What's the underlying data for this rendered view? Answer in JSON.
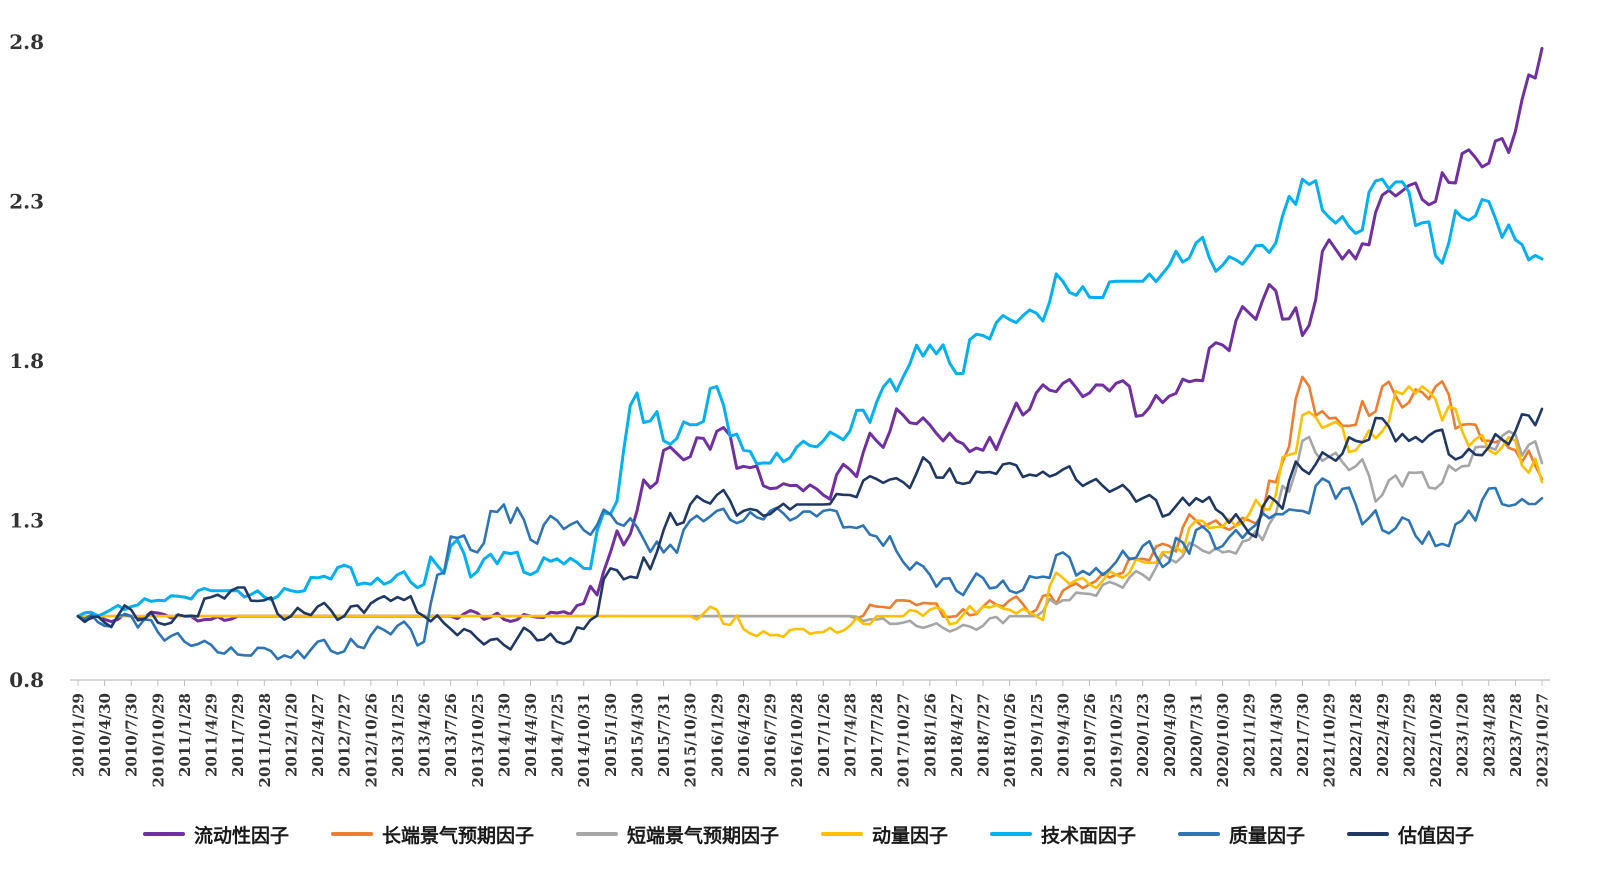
{
  "chart_data": {
    "type": "line",
    "title": "",
    "legend_position": "bottom",
    "grid": false,
    "axis_color": "#BFBFBF",
    "label_color": "#333333",
    "ylim": [
      0.8,
      2.8
    ],
    "y_ticks": [
      0.8,
      1.3,
      1.8,
      2.3,
      2.8
    ],
    "x_labels": [
      "2010/1/29",
      "2010/4/30",
      "2010/7/30",
      "2010/10/29",
      "2011/1/28",
      "2011/4/29",
      "2011/7/29",
      "2011/10/28",
      "2012/1/20",
      "2012/4/27",
      "2012/7/27",
      "2012/10/26",
      "2013/1/25",
      "2013/4/26",
      "2013/7/26",
      "2013/10/25",
      "2014/1/30",
      "2014/4/30",
      "2014/7/25",
      "2014/10/31",
      "2015/1/30",
      "2015/4/30",
      "2015/7/31",
      "2015/10/30",
      "2016/1/29",
      "2016/4/29",
      "2016/7/29",
      "2016/10/28",
      "2017/1/26",
      "2017/4/28",
      "2017/7/28",
      "2017/10/27",
      "2018/1/26",
      "2018/4/27",
      "2018/7/27",
      "2018/10/26",
      "2019/1/25",
      "2019/4/30",
      "2019/7/26",
      "2019/10/25",
      "2020/1/23",
      "2020/4/30",
      "2020/7/31",
      "2020/10/30",
      "2021/1/29",
      "2021/4/30",
      "2021/7/30",
      "2021/10/29",
      "2022/1/28",
      "2022/4/29",
      "2022/7/29",
      "2022/10/28",
      "2023/1/20",
      "2023/4/28",
      "2023/7/28",
      "2023/10/27"
    ],
    "series": [
      {
        "name": "流动性因子",
        "color": "#7030A0",
        "values": [
          1.0,
          0.99,
          1.0,
          1.01,
          1.0,
          0.99,
          1.0,
          1.0,
          1.0,
          1.0,
          1.0,
          1.0,
          1.0,
          1.0,
          1.0,
          1.01,
          0.99,
          1.0,
          1.01,
          1.04,
          1.2,
          1.33,
          1.52,
          1.5,
          1.58,
          1.47,
          1.4,
          1.41,
          1.38,
          1.46,
          1.55,
          1.63,
          1.6,
          1.55,
          1.52,
          1.62,
          1.7,
          1.73,
          1.7,
          1.73,
          1.63,
          1.69,
          1.74,
          1.85,
          1.95,
          2.02,
          1.88,
          2.18,
          2.12,
          2.32,
          2.35,
          2.3,
          2.45,
          2.42,
          2.52,
          2.78
        ]
      },
      {
        "name": "长端景气预期因子",
        "color": "#ED7D31",
        "values": [
          1.0,
          1.0,
          1.0,
          1.0,
          1.0,
          1.0,
          1.0,
          1.0,
          1.0,
          1.0,
          1.0,
          1.0,
          1.0,
          1.0,
          1.0,
          1.0,
          1.0,
          1.0,
          1.0,
          1.0,
          1.0,
          1.0,
          1.0,
          1.0,
          1.0,
          1.0,
          1.0,
          1.0,
          1.0,
          1.0,
          1.03,
          1.05,
          1.04,
          1.0,
          1.03,
          1.05,
          1.02,
          1.08,
          1.1,
          1.13,
          1.18,
          1.22,
          1.3,
          1.28,
          1.3,
          1.42,
          1.75,
          1.62,
          1.6,
          1.72,
          1.67,
          1.72,
          1.6,
          1.55,
          1.52,
          1.43
        ]
      },
      {
        "name": "短端景气预期因子",
        "color": "#A6A6A6",
        "values": [
          1.0,
          1.0,
          1.0,
          1.0,
          1.0,
          1.0,
          1.0,
          1.0,
          1.0,
          1.0,
          1.0,
          1.0,
          1.0,
          1.0,
          1.0,
          1.0,
          1.0,
          1.0,
          1.0,
          1.0,
          1.0,
          1.0,
          1.0,
          1.0,
          1.0,
          1.0,
          1.0,
          1.0,
          1.0,
          1.0,
          0.99,
          0.98,
          0.97,
          0.96,
          0.97,
          1.0,
          1.0,
          1.05,
          1.07,
          1.1,
          1.13,
          1.18,
          1.22,
          1.2,
          1.24,
          1.32,
          1.55,
          1.5,
          1.47,
          1.38,
          1.45,
          1.4,
          1.47,
          1.53,
          1.57,
          1.48
        ]
      },
      {
        "name": "动量因子",
        "color": "#FFC000",
        "values": [
          1.0,
          1.0,
          1.0,
          1.0,
          1.0,
          1.0,
          1.0,
          1.0,
          1.0,
          1.0,
          1.0,
          1.0,
          1.0,
          1.0,
          1.0,
          1.0,
          1.0,
          1.0,
          1.0,
          1.0,
          1.0,
          1.0,
          1.0,
          1.0,
          1.02,
          0.96,
          0.94,
          0.96,
          0.95,
          0.97,
          1.0,
          1.0,
          1.02,
          0.98,
          1.03,
          1.02,
          1.0,
          1.12,
          1.1,
          1.13,
          1.17,
          1.2,
          1.3,
          1.28,
          1.32,
          1.38,
          1.63,
          1.6,
          1.52,
          1.58,
          1.72,
          1.68,
          1.58,
          1.52,
          1.55,
          1.42
        ]
      },
      {
        "name": "技术面因子",
        "color": "#00B0F0",
        "values": [
          1.0,
          1.01,
          1.03,
          1.05,
          1.06,
          1.08,
          1.08,
          1.06,
          1.08,
          1.12,
          1.16,
          1.1,
          1.13,
          1.1,
          1.22,
          1.14,
          1.2,
          1.13,
          1.18,
          1.15,
          1.32,
          1.7,
          1.55,
          1.6,
          1.72,
          1.52,
          1.48,
          1.53,
          1.55,
          1.58,
          1.67,
          1.75,
          1.85,
          1.76,
          1.88,
          1.93,
          1.95,
          2.05,
          2.0,
          2.05,
          2.05,
          2.1,
          2.17,
          2.1,
          2.13,
          2.17,
          2.37,
          2.25,
          2.2,
          2.37,
          2.33,
          2.13,
          2.25,
          2.3,
          2.18,
          2.12
        ]
      },
      {
        "name": "质量因子",
        "color": "#2E75B6",
        "values": [
          1.0,
          0.97,
          1.0,
          0.95,
          0.92,
          0.91,
          0.88,
          0.9,
          0.87,
          0.92,
          0.89,
          0.94,
          0.97,
          0.92,
          1.25,
          1.2,
          1.35,
          1.24,
          1.3,
          1.27,
          1.32,
          1.28,
          1.2,
          1.3,
          1.33,
          1.3,
          1.33,
          1.31,
          1.33,
          1.28,
          1.25,
          1.17,
          1.13,
          1.08,
          1.12,
          1.08,
          1.12,
          1.2,
          1.13,
          1.17,
          1.22,
          1.17,
          1.27,
          1.22,
          1.27,
          1.32,
          1.33,
          1.42,
          1.35,
          1.27,
          1.3,
          1.22,
          1.3,
          1.4,
          1.35,
          1.37
        ]
      },
      {
        "name": "估值因子",
        "color": "#203864",
        "values": [
          1.0,
          0.98,
          1.02,
          0.98,
          1.0,
          1.06,
          1.09,
          1.05,
          1.0,
          1.03,
          1.0,
          1.04,
          1.06,
          1.0,
          0.96,
          0.93,
          0.91,
          0.95,
          0.92,
          0.96,
          1.15,
          1.12,
          1.27,
          1.35,
          1.38,
          1.33,
          1.32,
          1.35,
          1.35,
          1.38,
          1.43,
          1.42,
          1.48,
          1.42,
          1.45,
          1.48,
          1.44,
          1.46,
          1.42,
          1.4,
          1.37,
          1.32,
          1.37,
          1.32,
          1.26,
          1.36,
          1.46,
          1.5,
          1.55,
          1.62,
          1.55,
          1.58,
          1.5,
          1.53,
          1.58,
          1.65
        ]
      }
    ]
  }
}
